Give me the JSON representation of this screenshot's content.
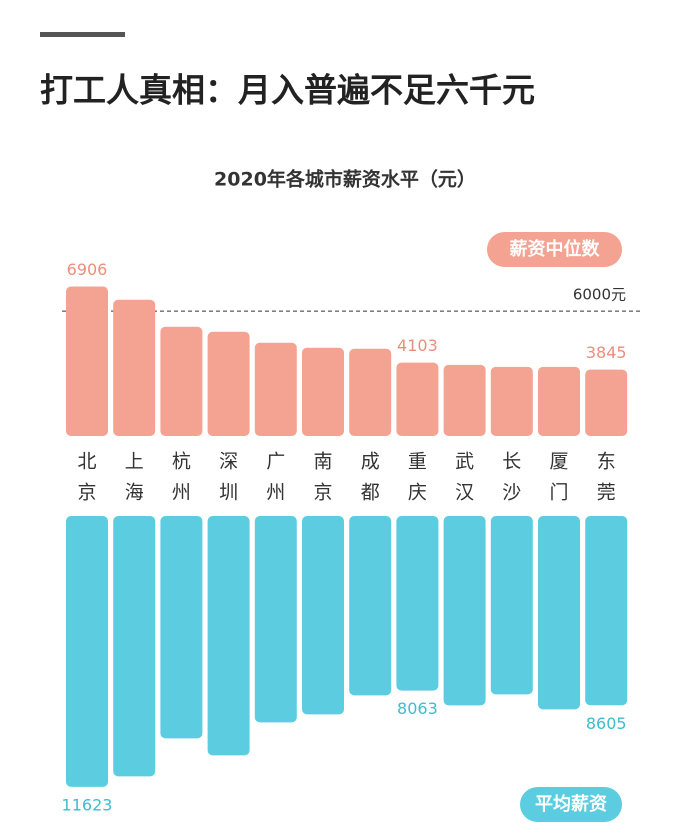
{
  "chart_data": {
    "type": "mirrored-bar",
    "title": "打工人真相：月入普遍不足六千元",
    "subtitle": "2020年各城市薪资水平（元）",
    "categories": [
      "北京",
      "上海",
      "杭州",
      "深圳",
      "广州",
      "南京",
      "成都",
      "重庆",
      "武汉",
      "长沙",
      "厦门",
      "东莞"
    ],
    "series": [
      {
        "name": "薪资中位数",
        "color": "#f4a292",
        "label_color": "#e98f7c",
        "values": [
          6906,
          6420,
          5424,
          5240,
          4834,
          4650,
          4613,
          4103,
          4022,
          3948,
          3948,
          3845
        ],
        "value_labels": [
          "6906",
          null,
          null,
          null,
          null,
          null,
          null,
          "4103",
          null,
          null,
          null,
          "3845"
        ]
      },
      {
        "name": "平均薪资",
        "color": "#5ccde1",
        "label_color": "#3dbcd1",
        "axis": "y2",
        "values": [
          11623,
          11237,
          9830,
          10459,
          9237,
          8941,
          8237,
          8063,
          8607,
          8200,
          8756,
          8605
        ],
        "value_labels": [
          "11623",
          null,
          null,
          null,
          null,
          null,
          null,
          "8063",
          null,
          null,
          null,
          "8605"
        ]
      }
    ],
    "reference_line": {
      "value": 6000,
      "label": "6000元"
    },
    "ylim": [
      1400,
      7000
    ],
    "y2lim": [
      1600,
      12000
    ]
  }
}
